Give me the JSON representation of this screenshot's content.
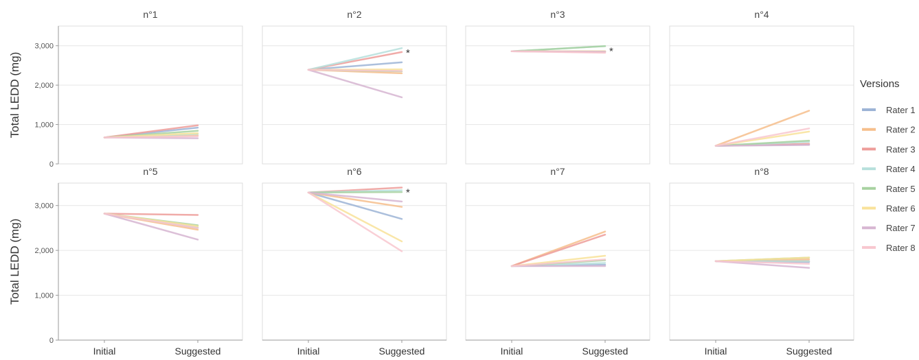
{
  "chart_data": {
    "type": "line",
    "ylabel": "Total LEDD (mg)",
    "x_categories": [
      "Initial",
      "Suggested"
    ],
    "y_ticks": [
      0,
      1000,
      2000,
      3000
    ],
    "y_tick_labels": [
      "0",
      "1,000",
      "2,000",
      "3,000"
    ],
    "ylim": [
      0,
      3500
    ],
    "grid": true,
    "legend": {
      "title": "Versions",
      "placement": "right",
      "items": [
        {
          "name": "Rater 1",
          "color": "#9db4d6"
        },
        {
          "name": "Rater 2",
          "color": "#f6bf8c"
        },
        {
          "name": "Rater 3",
          "color": "#ee9d9a"
        },
        {
          "name": "Rater 4",
          "color": "#b7e0dc"
        },
        {
          "name": "Rater 5",
          "color": "#a8d2a1"
        },
        {
          "name": "Rater 6",
          "color": "#f9e29a"
        },
        {
          "name": "Rater 7",
          "color": "#d7b6d2"
        },
        {
          "name": "Rater 8",
          "color": "#f8c7cf"
        }
      ]
    },
    "panels": [
      {
        "title": "n°1",
        "initial": 670,
        "suggested": [
          920,
          720,
          980,
          760,
          840,
          780,
          650,
          700
        ],
        "marker": ""
      },
      {
        "title": "n°2",
        "initial": 2390,
        "suggested": [
          2580,
          2300,
          2840,
          2940,
          2350,
          2400,
          1690,
          2360
        ],
        "marker": "*"
      },
      {
        "title": "n°3",
        "initial": 2860,
        "suggested": [
          2860,
          2850,
          2840,
          2990,
          2990,
          2860,
          2850,
          2820
        ],
        "marker": "*"
      },
      {
        "title": "n°4",
        "initial": 460,
        "suggested": [
          490,
          1350,
          510,
          560,
          590,
          820,
          480,
          900
        ],
        "marker": ""
      },
      {
        "title": "n°5",
        "initial": 2820,
        "suggested": [
          2500,
          2460,
          2790,
          2520,
          2560,
          2540,
          2240,
          2500
        ],
        "marker": ""
      },
      {
        "title": "n°6",
        "initial": 3290,
        "suggested": [
          2700,
          2970,
          3400,
          3340,
          3300,
          2200,
          3090,
          1980
        ],
        "marker": "*"
      },
      {
        "title": "n°7",
        "initial": 1650,
        "suggested": [
          1680,
          2420,
          2350,
          1720,
          1780,
          1880,
          1650,
          1800
        ],
        "marker": ""
      },
      {
        "title": "n°8",
        "initial": 1760,
        "suggested": [
          1740,
          1800,
          1760,
          1760,
          1840,
          1840,
          1610,
          1700
        ],
        "marker": ""
      }
    ]
  }
}
